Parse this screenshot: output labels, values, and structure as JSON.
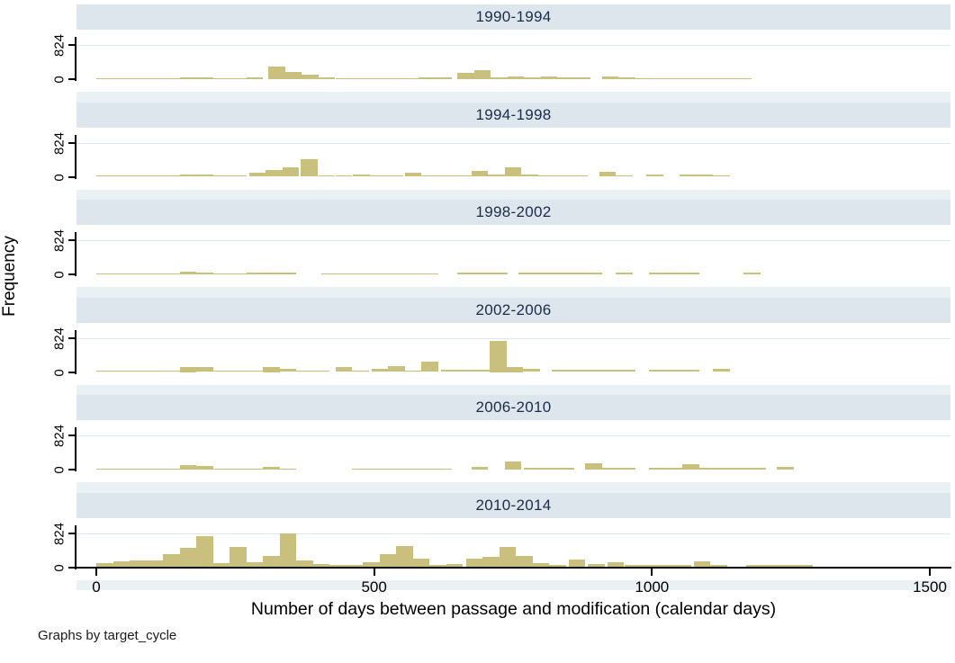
{
  "chart_data": {
    "type": "bar",
    "kind": "histogram-small-multiples",
    "by_variable": "target_cycle",
    "title": "",
    "xlabel": "Number of days between passage and modification (calendar days)",
    "ylabel": "Frequency",
    "note": "Graphs by target_cycle",
    "x_ticks": [
      0,
      500,
      1000,
      1500
    ],
    "y_ticks": [
      "0",
      "824"
    ],
    "xlim": [
      -35,
      1540
    ],
    "ylim": [
      0,
      880
    ],
    "bin_width_days": 30,
    "grid": "y-gridline at 824 only",
    "legend_position": "none",
    "panels": [
      {
        "title": "1990-1994",
        "bars": [
          [
            0,
            30
          ],
          [
            30,
            30
          ],
          [
            60,
            30
          ],
          [
            90,
            30
          ],
          [
            120,
            30
          ],
          [
            150,
            40
          ],
          [
            180,
            40
          ],
          [
            210,
            30
          ],
          [
            240,
            30
          ],
          [
            270,
            40
          ],
          [
            310,
            300
          ],
          [
            340,
            170
          ],
          [
            370,
            100
          ],
          [
            400,
            40
          ],
          [
            430,
            30
          ],
          [
            460,
            30
          ],
          [
            490,
            30
          ],
          [
            520,
            30
          ],
          [
            550,
            30
          ],
          [
            580,
            40
          ],
          [
            610,
            40
          ],
          [
            650,
            150
          ],
          [
            680,
            220
          ],
          [
            710,
            40
          ],
          [
            740,
            60
          ],
          [
            770,
            40
          ],
          [
            800,
            60
          ],
          [
            830,
            45
          ],
          [
            860,
            40
          ],
          [
            910,
            60
          ],
          [
            940,
            40
          ],
          [
            970,
            30
          ],
          [
            1000,
            30
          ],
          [
            1030,
            30
          ],
          [
            1060,
            30
          ],
          [
            1090,
            30
          ],
          [
            1120,
            30
          ],
          [
            1150,
            30
          ]
        ]
      },
      {
        "title": "1994-1998",
        "bars": [
          [
            0,
            30
          ],
          [
            30,
            30
          ],
          [
            60,
            30
          ],
          [
            90,
            30
          ],
          [
            120,
            30
          ],
          [
            150,
            60
          ],
          [
            180,
            60
          ],
          [
            210,
            40
          ],
          [
            240,
            40
          ],
          [
            275,
            100
          ],
          [
            305,
            170
          ],
          [
            335,
            230
          ],
          [
            368,
            430
          ],
          [
            400,
            40
          ],
          [
            430,
            40
          ],
          [
            462,
            60
          ],
          [
            492,
            40
          ],
          [
            522,
            40
          ],
          [
            555,
            100
          ],
          [
            585,
            40
          ],
          [
            615,
            40
          ],
          [
            645,
            40
          ],
          [
            675,
            150
          ],
          [
            705,
            50
          ],
          [
            735,
            220
          ],
          [
            765,
            50
          ],
          [
            795,
            40
          ],
          [
            825,
            30
          ],
          [
            855,
            30
          ],
          [
            905,
            110
          ],
          [
            935,
            30
          ],
          [
            990,
            60
          ],
          [
            1050,
            60
          ],
          [
            1080,
            60
          ],
          [
            1110,
            30
          ]
        ]
      },
      {
        "title": "1998-2002",
        "bars": [
          [
            0,
            25
          ],
          [
            30,
            25
          ],
          [
            60,
            25
          ],
          [
            90,
            25
          ],
          [
            120,
            25
          ],
          [
            150,
            60
          ],
          [
            180,
            50
          ],
          [
            210,
            25
          ],
          [
            240,
            25
          ],
          [
            270,
            35
          ],
          [
            300,
            45
          ],
          [
            330,
            45
          ],
          [
            405,
            30
          ],
          [
            435,
            30
          ],
          [
            465,
            30
          ],
          [
            495,
            30
          ],
          [
            525,
            30
          ],
          [
            555,
            30
          ],
          [
            585,
            30
          ],
          [
            650,
            40
          ],
          [
            680,
            40
          ],
          [
            710,
            40
          ],
          [
            760,
            40
          ],
          [
            790,
            40
          ],
          [
            820,
            40
          ],
          [
            850,
            40
          ],
          [
            880,
            40
          ],
          [
            935,
            40
          ],
          [
            995,
            40
          ],
          [
            1025,
            40
          ],
          [
            1055,
            40
          ],
          [
            1165,
            40
          ]
        ]
      },
      {
        "title": "2002-2006",
        "bars": [
          [
            0,
            30
          ],
          [
            30,
            30
          ],
          [
            60,
            30
          ],
          [
            90,
            30
          ],
          [
            120,
            30
          ],
          [
            150,
            130
          ],
          [
            180,
            110
          ],
          [
            210,
            30
          ],
          [
            240,
            30
          ],
          [
            270,
            30
          ],
          [
            300,
            130
          ],
          [
            330,
            70
          ],
          [
            360,
            30
          ],
          [
            390,
            30
          ],
          [
            430,
            110
          ],
          [
            460,
            30
          ],
          [
            495,
            70
          ],
          [
            525,
            150
          ],
          [
            555,
            30
          ],
          [
            585,
            240
          ],
          [
            620,
            45
          ],
          [
            650,
            45
          ],
          [
            680,
            45
          ],
          [
            708,
            760
          ],
          [
            738,
            130
          ],
          [
            768,
            70
          ],
          [
            820,
            45
          ],
          [
            850,
            45
          ],
          [
            880,
            45
          ],
          [
            910,
            45
          ],
          [
            940,
            45
          ],
          [
            995,
            45
          ],
          [
            1025,
            45
          ],
          [
            1055,
            45
          ],
          [
            1110,
            70
          ]
        ]
      },
      {
        "title": "2006-2010",
        "bars": [
          [
            0,
            30
          ],
          [
            30,
            30
          ],
          [
            60,
            30
          ],
          [
            90,
            30
          ],
          [
            120,
            30
          ],
          [
            150,
            100
          ],
          [
            180,
            80
          ],
          [
            210,
            30
          ],
          [
            240,
            30
          ],
          [
            270,
            30
          ],
          [
            300,
            60
          ],
          [
            330,
            30
          ],
          [
            460,
            30
          ],
          [
            490,
            30
          ],
          [
            520,
            30
          ],
          [
            550,
            30
          ],
          [
            580,
            30
          ],
          [
            610,
            30
          ],
          [
            675,
            60
          ],
          [
            735,
            190
          ],
          [
            770,
            40
          ],
          [
            800,
            40
          ],
          [
            830,
            40
          ],
          [
            880,
            150
          ],
          [
            910,
            40
          ],
          [
            940,
            40
          ],
          [
            995,
            40
          ],
          [
            1025,
            40
          ],
          [
            1055,
            130
          ],
          [
            1085,
            40
          ],
          [
            1115,
            40
          ],
          [
            1145,
            40
          ],
          [
            1175,
            40
          ],
          [
            1225,
            60
          ]
        ]
      },
      {
        "title": "2010-2014",
        "bars": [
          [
            0,
            100
          ],
          [
            30,
            150
          ],
          [
            60,
            170
          ],
          [
            90,
            160
          ],
          [
            120,
            310
          ],
          [
            150,
            470
          ],
          [
            180,
            740
          ],
          [
            210,
            100
          ],
          [
            240,
            490
          ],
          [
            270,
            120
          ],
          [
            300,
            270
          ],
          [
            330,
            820
          ],
          [
            360,
            160
          ],
          [
            390,
            80
          ],
          [
            420,
            60
          ],
          [
            450,
            45
          ],
          [
            480,
            130
          ],
          [
            510,
            310
          ],
          [
            540,
            515
          ],
          [
            570,
            205
          ],
          [
            600,
            60
          ],
          [
            630,
            80
          ],
          [
            665,
            205
          ],
          [
            695,
            250
          ],
          [
            725,
            490
          ],
          [
            755,
            270
          ],
          [
            785,
            100
          ],
          [
            815,
            60
          ],
          [
            850,
            190
          ],
          [
            885,
            80
          ],
          [
            920,
            130
          ],
          [
            950,
            45
          ],
          [
            980,
            45
          ],
          [
            1010,
            45
          ],
          [
            1040,
            45
          ],
          [
            1075,
            140
          ],
          [
            1105,
            60
          ],
          [
            1170,
            45
          ],
          [
            1200,
            45
          ],
          [
            1230,
            45
          ],
          [
            1260,
            45
          ]
        ]
      }
    ],
    "colors": {
      "bar_fill": "#c9c07e",
      "panel_title_band": "#dde6ec",
      "between_panel_strip": "#e9f1f5",
      "gridline": "#d9e8f1",
      "axis": "#000000",
      "panel_title_text": "#1c2b4a"
    }
  }
}
